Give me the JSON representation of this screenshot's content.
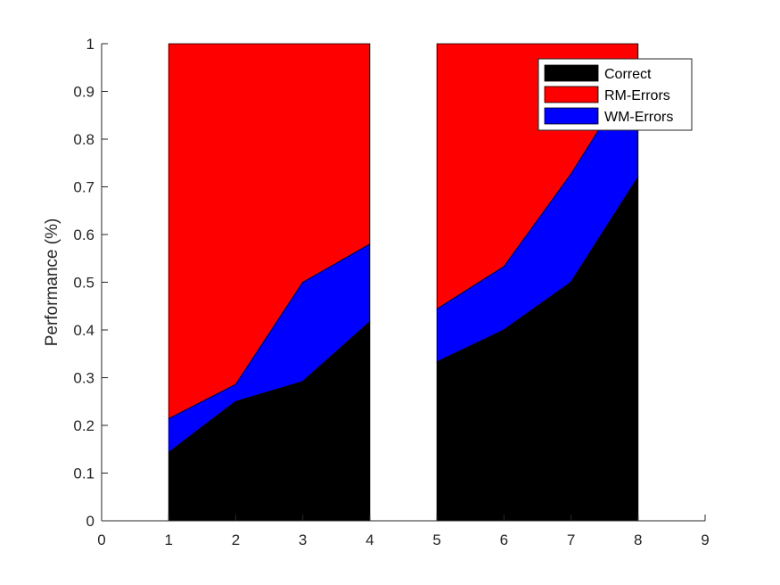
{
  "chart_data": {
    "type": "area",
    "title": "",
    "xlabel": "",
    "ylabel": "Performance (%)",
    "xlim": [
      0,
      9
    ],
    "ylim": [
      0,
      1
    ],
    "xticks": [
      0,
      1,
      2,
      3,
      4,
      5,
      6,
      7,
      8,
      9
    ],
    "yticks": [
      0,
      0.1,
      0.2,
      0.3,
      0.4,
      0.5,
      0.6,
      0.7,
      0.8,
      0.9,
      1
    ],
    "stacked": true,
    "grid": false,
    "legend_position": "top-right",
    "groups": [
      {
        "x": [
          1,
          2,
          3,
          4
        ],
        "series": [
          {
            "name": "Correct",
            "color": "#000000",
            "values": [
              0.143,
              0.25,
              0.292,
              0.417
            ]
          },
          {
            "name": "RM-Errors",
            "color": "#ff0000",
            "values": [
              0.786,
              0.714,
              0.5,
              0.42
            ]
          },
          {
            "name": "WM-Errors",
            "color": "#0000ff",
            "values": [
              0.071,
              0.036,
              0.208,
              0.163
            ]
          }
        ]
      },
      {
        "x": [
          5,
          6,
          7,
          8
        ],
        "series": [
          {
            "name": "Correct",
            "color": "#000000",
            "values": [
              0.333,
              0.4,
              0.5,
              0.72
            ]
          },
          {
            "name": "RM-Errors",
            "color": "#ff0000",
            "values": [
              0.556,
              0.467,
              0.273,
              0.05
            ]
          },
          {
            "name": "WM-Errors",
            "color": "#0000ff",
            "values": [
              0.111,
              0.133,
              0.227,
              0.23
            ]
          }
        ]
      }
    ],
    "stack_order": [
      "Correct",
      "WM-Errors",
      "RM-Errors"
    ],
    "legend": [
      "Correct",
      "RM-Errors",
      "WM-Errors"
    ]
  }
}
